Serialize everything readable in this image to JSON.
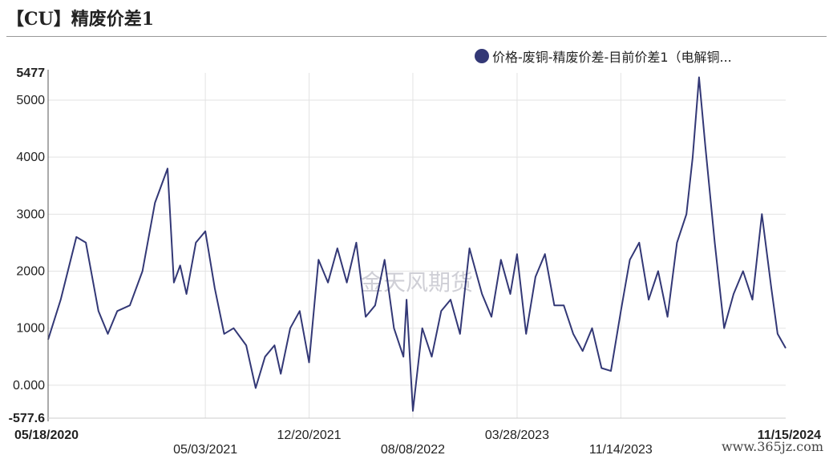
{
  "title": "【CU】精废价差1",
  "watermark": "金天风期货",
  "site": "www.365jz.com",
  "colors": {
    "series": "#333876",
    "grid": "#e3e3e3",
    "axis": "#222222"
  },
  "chart_data": {
    "type": "line",
    "title": "【CU】精废价差1",
    "ylim": [
      -577.6,
      5477
    ],
    "y_ticks": [
      {
        "value": 5477,
        "label": "5477",
        "bold": true
      },
      {
        "value": 5000,
        "label": "5000"
      },
      {
        "value": 4000,
        "label": "4000"
      },
      {
        "value": 3000,
        "label": "3000"
      },
      {
        "value": 2000,
        "label": "2000"
      },
      {
        "value": 1000,
        "label": "1000"
      },
      {
        "value": 0,
        "label": "0.000"
      },
      {
        "value": -577.6,
        "label": "-577.6",
        "bold": true
      }
    ],
    "x_ticks": [
      {
        "date": "2020-05-18",
        "label": "05/18/2020",
        "row": 1,
        "bold": true
      },
      {
        "date": "2021-05-03",
        "label": "05/03/2021",
        "row": 2
      },
      {
        "date": "2021-12-20",
        "label": "12/20/2021",
        "row": 1
      },
      {
        "date": "2022-08-08",
        "label": "08/08/2022",
        "row": 2
      },
      {
        "date": "2023-03-28",
        "label": "03/28/2023",
        "row": 1
      },
      {
        "date": "2023-11-14",
        "label": "11/14/2023",
        "row": 2
      },
      {
        "date": "2024-11-15",
        "label": "11/15/2024",
        "row": 1,
        "bold": true
      }
    ],
    "grid": true,
    "legend_position": "top-right",
    "series": [
      {
        "name": "价格-废铜-精废价差-目前价差1（电解铜...",
        "x": [
          "2020-05-18",
          "2020-06-15",
          "2020-07-20",
          "2020-08-10",
          "2020-09-07",
          "2020-09-28",
          "2020-10-19",
          "2020-11-16",
          "2020-12-14",
          "2021-01-11",
          "2021-02-08",
          "2021-02-22",
          "2021-03-08",
          "2021-03-22",
          "2021-04-12",
          "2021-05-03",
          "2021-05-24",
          "2021-06-14",
          "2021-07-05",
          "2021-08-02",
          "2021-08-23",
          "2021-09-13",
          "2021-10-04",
          "2021-10-18",
          "2021-11-08",
          "2021-11-29",
          "2021-12-20",
          "2022-01-10",
          "2022-01-31",
          "2022-02-21",
          "2022-03-14",
          "2022-04-04",
          "2022-04-25",
          "2022-05-16",
          "2022-06-06",
          "2022-06-27",
          "2022-07-18",
          "2022-07-25",
          "2022-08-08",
          "2022-08-29",
          "2022-09-19",
          "2022-10-10",
          "2022-10-31",
          "2022-11-21",
          "2022-12-12",
          "2023-01-09",
          "2023-01-30",
          "2023-02-20",
          "2023-03-13",
          "2023-03-28",
          "2023-04-17",
          "2023-05-08",
          "2023-05-29",
          "2023-06-19",
          "2023-07-10",
          "2023-07-31",
          "2023-08-21",
          "2023-09-11",
          "2023-10-02",
          "2023-10-23",
          "2023-11-14",
          "2023-12-04",
          "2023-12-25",
          "2024-01-15",
          "2024-02-05",
          "2024-02-26",
          "2024-03-18",
          "2024-04-08",
          "2024-04-22",
          "2024-05-06",
          "2024-05-20",
          "2024-06-10",
          "2024-07-01",
          "2024-07-22",
          "2024-08-12",
          "2024-09-02",
          "2024-09-23",
          "2024-10-14",
          "2024-10-28",
          "2024-11-15"
        ],
        "y": [
          800,
          1500,
          2600,
          2500,
          1300,
          900,
          1300,
          1400,
          2000,
          3200,
          3800,
          1800,
          2100,
          1600,
          2500,
          2700,
          1700,
          900,
          1000,
          700,
          -50,
          500,
          700,
          200,
          1000,
          1300,
          400,
          2200,
          1800,
          2400,
          1800,
          2500,
          1200,
          1400,
          2200,
          1000,
          500,
          1500,
          -450,
          1000,
          500,
          1300,
          1500,
          900,
          2400,
          1600,
          1200,
          2200,
          1600,
          2300,
          900,
          1900,
          2300,
          1400,
          1400,
          900,
          600,
          1000,
          300,
          250,
          1300,
          2200,
          2500,
          1500,
          2000,
          1200,
          2500,
          3000,
          4000,
          5400,
          4200,
          2500,
          1000,
          1600,
          2000,
          1500,
          3000,
          1700,
          900,
          650
        ]
      }
    ]
  }
}
